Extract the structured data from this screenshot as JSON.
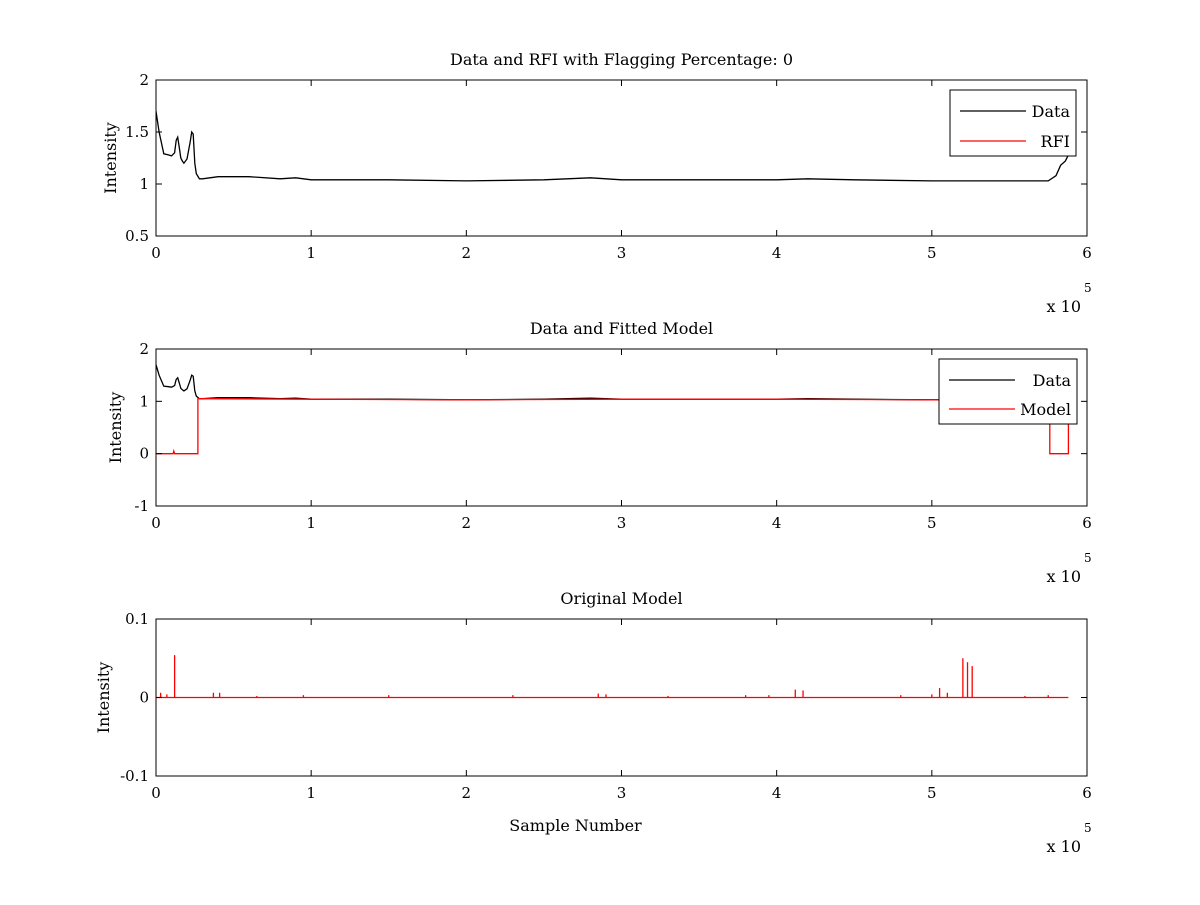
{
  "chart_data": [
    {
      "type": "line",
      "title": "Data and RFI with Flagging Percentage: 0",
      "xlabel": "",
      "ylabel": "Intensity",
      "xlim": [
        0,
        600000
      ],
      "ylim": [
        0.5,
        2
      ],
      "x_ticks": [
        0,
        100000,
        200000,
        300000,
        400000,
        500000,
        600000
      ],
      "x_tick_labels": [
        "0",
        "1",
        "2",
        "3",
        "4",
        "5",
        "6"
      ],
      "y_ticks": [
        0.5,
        1,
        1.5,
        2
      ],
      "y_tick_labels": [
        "0.5",
        "1",
        "1.5",
        "2"
      ],
      "x_multiplier_prefix": "x 10",
      "x_multiplier_exponent": "5",
      "legend_position": "top-right",
      "legend": [
        "Data",
        "RFI"
      ],
      "series": [
        {
          "name": "Data",
          "color": "#000000",
          "x": [
            0,
            2000,
            5000,
            8000,
            10000,
            12000,
            13000,
            14000,
            15000,
            16000,
            17000,
            18000,
            20000,
            22000,
            23000,
            24000,
            25000,
            26000,
            28000,
            30000,
            40000,
            60000,
            80000,
            90000,
            100000,
            150000,
            200000,
            250000,
            280000,
            300000,
            350000,
            400000,
            420000,
            450000,
            500000,
            550000,
            575000,
            580000,
            583000,
            586000,
            588000
          ],
          "y": [
            1.7,
            1.5,
            1.29,
            1.28,
            1.27,
            1.3,
            1.42,
            1.45,
            1.35,
            1.25,
            1.22,
            1.2,
            1.24,
            1.4,
            1.5,
            1.48,
            1.2,
            1.1,
            1.05,
            1.05,
            1.07,
            1.07,
            1.05,
            1.06,
            1.04,
            1.04,
            1.03,
            1.04,
            1.06,
            1.04,
            1.04,
            1.04,
            1.05,
            1.04,
            1.03,
            1.03,
            1.03,
            1.08,
            1.18,
            1.22,
            1.28
          ]
        },
        {
          "name": "RFI",
          "color": "#ff0000",
          "x": [],
          "y": []
        }
      ]
    },
    {
      "type": "line",
      "title": "Data and Fitted Model",
      "xlabel": "",
      "ylabel": "Intensity",
      "xlim": [
        0,
        600000
      ],
      "ylim": [
        -1,
        2
      ],
      "x_ticks": [
        0,
        100000,
        200000,
        300000,
        400000,
        500000,
        600000
      ],
      "x_tick_labels": [
        "0",
        "1",
        "2",
        "3",
        "4",
        "5",
        "6"
      ],
      "y_ticks": [
        -1,
        0,
        1,
        2
      ],
      "y_tick_labels": [
        "-1",
        "0",
        "1",
        "2"
      ],
      "x_multiplier_prefix": "x 10",
      "x_multiplier_exponent": "5",
      "legend_position": "top-right",
      "legend": [
        "Data",
        "Model"
      ],
      "series": [
        {
          "name": "Data",
          "color": "#000000",
          "x": [
            0,
            2000,
            5000,
            8000,
            10000,
            12000,
            13000,
            14000,
            15000,
            16000,
            17000,
            18000,
            20000,
            22000,
            23000,
            24000,
            25000,
            26000,
            28000,
            30000,
            40000,
            60000,
            80000,
            90000,
            100000,
            150000,
            200000,
            250000,
            280000,
            300000,
            350000,
            400000,
            420000,
            450000,
            500000,
            550000,
            575000,
            580000,
            583000,
            586000,
            588000
          ],
          "y": [
            1.7,
            1.5,
            1.29,
            1.28,
            1.27,
            1.3,
            1.42,
            1.45,
            1.35,
            1.25,
            1.22,
            1.2,
            1.24,
            1.4,
            1.5,
            1.48,
            1.2,
            1.1,
            1.05,
            1.05,
            1.07,
            1.07,
            1.05,
            1.06,
            1.04,
            1.04,
            1.03,
            1.04,
            1.06,
            1.04,
            1.04,
            1.04,
            1.05,
            1.04,
            1.03,
            1.03,
            1.03,
            1.08,
            1.18,
            1.22,
            1.28
          ]
        },
        {
          "name": "Model",
          "color": "#ff0000",
          "x": [
            0,
            11000,
            11500,
            12000,
            27000,
            27000,
            30000,
            100000,
            200000,
            300000,
            400000,
            500000,
            575000,
            576000,
            576000,
            588000,
            588000
          ],
          "y": [
            0,
            0,
            0.05,
            0,
            0,
            1.05,
            1.05,
            1.04,
            1.03,
            1.04,
            1.04,
            1.03,
            1.03,
            1.03,
            0,
            0,
            1.03
          ]
        }
      ]
    },
    {
      "type": "line",
      "title": "Original Model",
      "xlabel": "Sample Number",
      "ylabel": "Intensity",
      "xlim": [
        0,
        600000
      ],
      "ylim": [
        -0.1,
        0.1
      ],
      "x_ticks": [
        0,
        100000,
        200000,
        300000,
        400000,
        500000,
        600000
      ],
      "x_tick_labels": [
        "0",
        "1",
        "2",
        "3",
        "4",
        "5",
        "6"
      ],
      "y_ticks": [
        -0.1,
        0,
        0.1
      ],
      "y_tick_labels": [
        "-0.1",
        "0",
        "0.1"
      ],
      "x_multiplier_prefix": "x 10",
      "x_multiplier_exponent": "5",
      "series": [
        {
          "name": "",
          "color": "#ff0000",
          "baseline": 0,
          "x_end": 588000,
          "spikes_x": [
            3000,
            7000,
            12000,
            37000,
            41000,
            65000,
            95000,
            150000,
            230000,
            285000,
            290000,
            330000,
            380000,
            395000,
            412000,
            417000,
            480000,
            500000,
            505000,
            510000,
            520000,
            523000,
            526000,
            560000,
            575000
          ],
          "spikes_y": [
            0.006,
            0.004,
            0.054,
            0.006,
            0.006,
            0.002,
            0.003,
            0.003,
            0.003,
            0.005,
            0.004,
            0.002,
            0.003,
            0.003,
            0.01,
            0.009,
            0.003,
            0.004,
            0.012,
            0.006,
            0.05,
            0.045,
            0.04,
            0.002,
            0.003
          ]
        }
      ]
    }
  ]
}
